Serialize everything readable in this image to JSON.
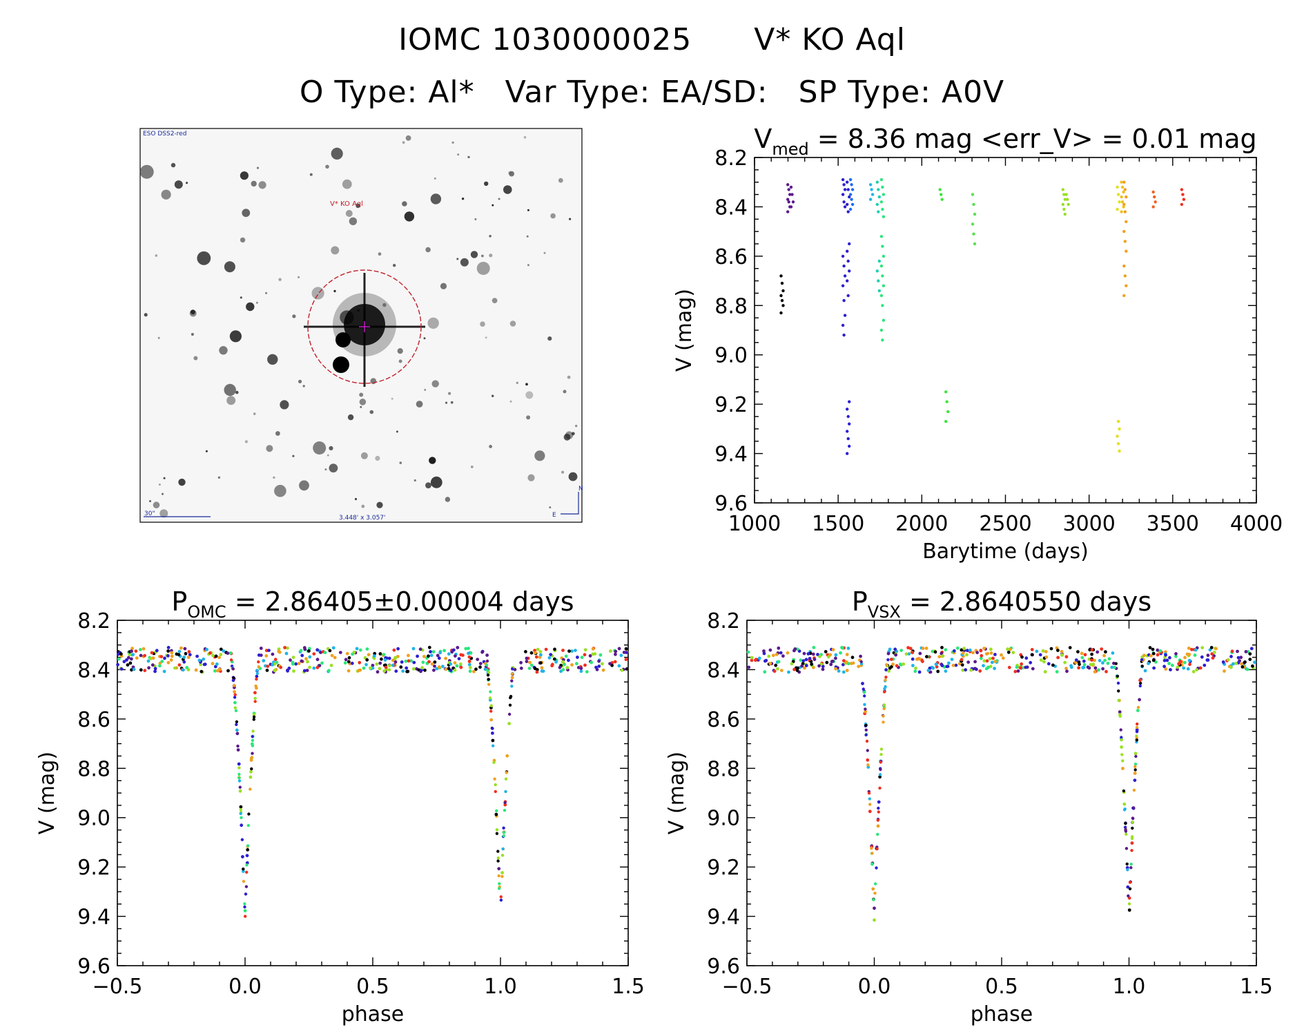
{
  "header": {
    "line1_left": "IOMC 1030000025",
    "line1_right": "V* KO Aql",
    "line2_a": "O Type: Al*",
    "line2_b": "Var Type: EA/SD:",
    "line2_c": "SP Type: A0V"
  },
  "finder_image": {
    "survey_label": "ESO DSS2-red",
    "target_label": "V* KO Aql",
    "scale_label": "30\"",
    "fov_label": "3.448' x 3.057'",
    "north_label": "N",
    "east_label": "E",
    "colors": {
      "circle": "#c0202a",
      "crosshair": "#d020d0",
      "annotation": "#1a2a9a"
    }
  },
  "chart_data": [
    {
      "type": "scatter",
      "title_main": "V",
      "title_sub": "med",
      "title_rest": "= 8.36 mag <err_V> = 0.01 mag",
      "xlabel": "Barytime (days)",
      "ylabel": "V (mag)",
      "xlim": [
        1000,
        4000
      ],
      "ylim": [
        9.6,
        8.2
      ],
      "y_inverted": true,
      "xticks": [
        1000,
        1500,
        2000,
        2500,
        3000,
        3500,
        4000
      ],
      "xtick_labels": [
        "1000",
        "1500",
        "2000",
        "2500",
        "3000",
        "3500",
        "4000"
      ],
      "yticks": [
        8.2,
        8.4,
        8.6,
        8.8,
        9.0,
        9.2,
        9.4,
        9.6
      ],
      "ytick_labels": [
        "8.2",
        "8.4",
        "8.6",
        "8.8",
        "9.0",
        "9.2",
        "9.4",
        "9.6"
      ],
      "groups": [
        {
          "t": 1165,
          "mags": [
            8.68,
            8.71,
            8.74,
            8.76,
            8.78,
            8.8,
            8.83
          ],
          "color": "#000000"
        },
        {
          "t": 1205,
          "mags": [
            8.31,
            8.33,
            8.35,
            8.37,
            8.38,
            8.4,
            8.42
          ],
          "color": "#5a1a8c"
        },
        {
          "t": 1225,
          "mags": [
            8.32,
            8.35,
            8.38,
            8.4
          ],
          "color": "#5a1a8c"
        },
        {
          "t": 1535,
          "mags": [
            8.29,
            8.31,
            8.33,
            8.35,
            8.38,
            8.4,
            8.6,
            8.64,
            8.68,
            8.72,
            8.78,
            8.84,
            8.88,
            8.92
          ],
          "color": "#2d1fd0"
        },
        {
          "t": 1560,
          "mags": [
            8.3,
            8.33,
            8.36,
            8.39,
            8.42,
            8.55,
            8.58,
            8.62,
            8.66,
            8.7,
            8.76,
            9.19,
            9.22,
            9.25,
            9.28,
            9.31,
            9.34,
            9.37,
            9.4
          ],
          "color": "#2d1fd0"
        },
        {
          "t": 1580,
          "mags": [
            8.29,
            8.31,
            8.33,
            8.35,
            8.37,
            8.39,
            8.41
          ],
          "color": "#1e6cf0"
        },
        {
          "t": 1700,
          "mags": [
            8.31,
            8.33,
            8.35,
            8.37
          ],
          "color": "#1fb4e8"
        },
        {
          "t": 1740,
          "mags": [
            8.3,
            8.33,
            8.36,
            8.39,
            8.42,
            8.62,
            8.66,
            8.7,
            8.74
          ],
          "color": "#1fd0b0"
        },
        {
          "t": 1765,
          "mags": [
            8.29,
            8.32,
            8.35,
            8.38,
            8.41,
            8.44,
            8.52,
            8.56,
            8.6,
            8.64,
            8.68,
            8.72,
            8.76,
            8.8,
            8.86,
            8.9,
            8.94
          ],
          "color": "#2ce67a"
        },
        {
          "t": 2115,
          "mags": [
            8.33,
            8.35,
            8.37
          ],
          "color": "#3ce63c"
        },
        {
          "t": 2150,
          "mags": [
            9.15,
            9.19,
            9.23,
            9.27
          ],
          "color": "#3ce63c"
        },
        {
          "t": 2310,
          "mags": [
            8.35,
            8.39,
            8.43,
            8.47,
            8.51,
            8.55
          ],
          "color": "#5ae050"
        },
        {
          "t": 2850,
          "mags": [
            8.33,
            8.35,
            8.37,
            8.39,
            8.41,
            8.43
          ],
          "color": "#9ae024"
        },
        {
          "t": 2870,
          "mags": [
            8.35,
            8.37,
            8.39
          ],
          "color": "#9ae024"
        },
        {
          "t": 3175,
          "mags": [
            8.32,
            8.35,
            8.38,
            8.41,
            9.27,
            9.3,
            9.33,
            9.36,
            9.39
          ],
          "color": "#e0e020"
        },
        {
          "t": 3200,
          "mags": [
            8.3,
            8.32,
            8.34,
            8.36,
            8.38,
            8.4,
            8.42
          ],
          "color": "#f0c020"
        },
        {
          "t": 3215,
          "mags": [
            8.3,
            8.33,
            8.36,
            8.39,
            8.42,
            8.46,
            8.5,
            8.54,
            8.58,
            8.64,
            8.68,
            8.72,
            8.76
          ],
          "color": "#f0a020"
        },
        {
          "t": 3390,
          "mags": [
            8.34,
            8.36,
            8.38,
            8.4
          ],
          "color": "#f06020"
        },
        {
          "t": 3560,
          "mags": [
            8.33,
            8.35,
            8.37,
            8.39
          ],
          "color": "#f03020"
        }
      ]
    },
    {
      "type": "scatter",
      "title_main": "P",
      "title_sub": "OMC",
      "title_rest": "= 2.86405±0.00004 days",
      "xlabel": "phase",
      "ylabel": "V (mag)",
      "xlim": [
        -0.5,
        1.5
      ],
      "ylim": [
        9.6,
        8.2
      ],
      "y_inverted": true,
      "xticks": [
        -0.5,
        0.0,
        0.5,
        1.0,
        1.5
      ],
      "xtick_labels": [
        "−0.5",
        "0.0",
        "0.5",
        "1.0",
        "1.5"
      ],
      "yticks": [
        8.2,
        8.4,
        8.6,
        8.8,
        9.0,
        9.2,
        9.4,
        9.6
      ],
      "ytick_labels": [
        "8.2",
        "8.4",
        "8.6",
        "8.8",
        "9.0",
        "9.2",
        "9.4",
        "9.6"
      ],
      "folded_curve": {
        "baseline_mag": 8.36,
        "eclipse_depth_mag": 1.04,
        "eclipse_halfwidth_phase": 0.055,
        "colors": [
          "#f0a020",
          "#2d1fd0",
          "#1fb4e8",
          "#2ce67a",
          "#f03020",
          "#5a1a8c",
          "#9ae024",
          "#000000"
        ]
      }
    },
    {
      "type": "scatter",
      "title_main": "P",
      "title_sub": "VSX",
      "title_rest": "= 2.8640550 days",
      "xlabel": "phase",
      "ylabel": "V (mag)",
      "xlim": [
        -0.5,
        1.5
      ],
      "ylim": [
        9.6,
        8.2
      ],
      "y_inverted": true,
      "xticks": [
        -0.5,
        0.0,
        0.5,
        1.0,
        1.5
      ],
      "xtick_labels": [
        "−0.5",
        "0.0",
        "0.5",
        "1.0",
        "1.5"
      ],
      "yticks": [
        8.2,
        8.4,
        8.6,
        8.8,
        9.0,
        9.2,
        9.4,
        9.6
      ],
      "ytick_labels": [
        "8.2",
        "8.4",
        "8.6",
        "8.8",
        "9.0",
        "9.2",
        "9.4",
        "9.6"
      ],
      "folded_curve": {
        "baseline_mag": 8.36,
        "eclipse_depth_mag": 1.04,
        "eclipse_halfwidth_phase": 0.055,
        "colors": [
          "#f0a020",
          "#2d1fd0",
          "#1fb4e8",
          "#2ce67a",
          "#f03020",
          "#5a1a8c",
          "#9ae024",
          "#000000"
        ]
      }
    }
  ]
}
